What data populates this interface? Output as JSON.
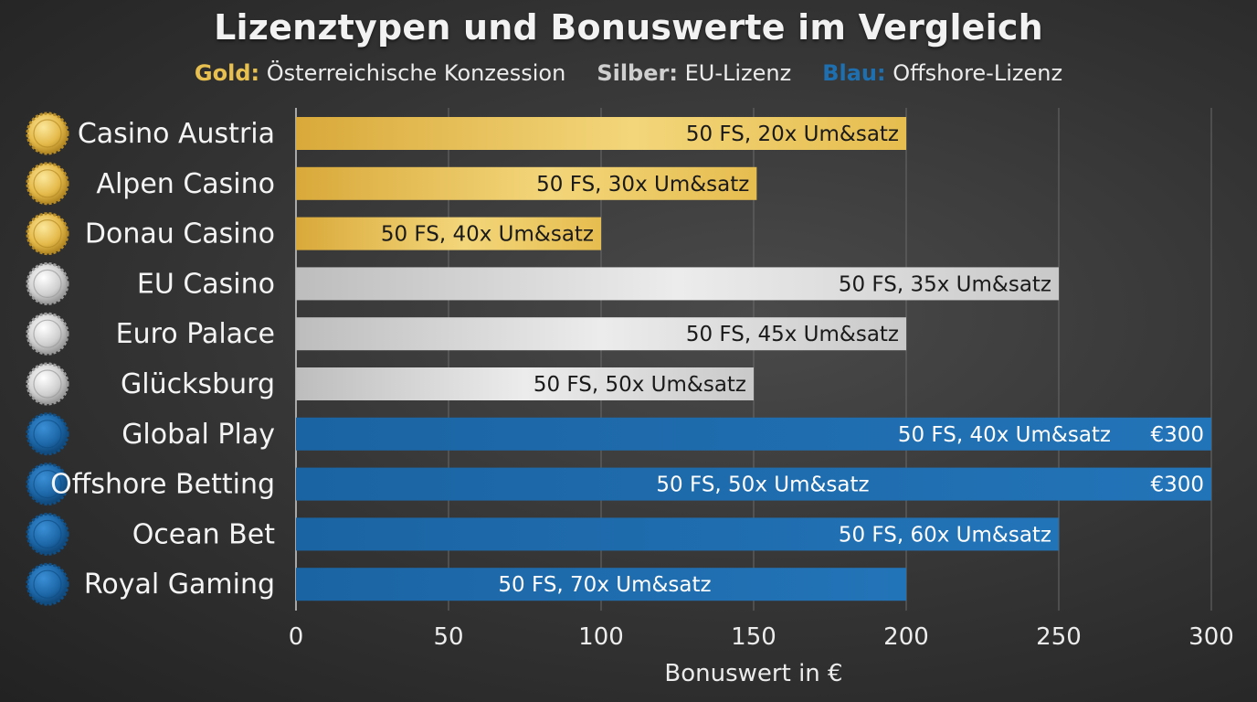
{
  "chart_data": {
    "type": "bar",
    "orientation": "horizontal",
    "title": "Lizenztypen und Bonuswerte im Vergleich",
    "legend": [
      {
        "key": "Gold:",
        "text": "Österreichische Konzession",
        "color": "#e8c050"
      },
      {
        "key": "Silber:",
        "text": "EU-Lizenz",
        "color": "#cfcfcf"
      },
      {
        "key": "Blau:",
        "text": "Offshore-Lizenz",
        "color": "#1e6fb0"
      }
    ],
    "legend_placement": "top-center",
    "categories": [
      "Casino Austria",
      "Alpen Casino",
      "Donau Casino",
      "EU Casino",
      "Euro Palace",
      "Glücksburg",
      "Global Play",
      "Offshore Betting",
      "Ocean Bet",
      "Royal Gaming"
    ],
    "values": [
      200,
      151,
      100,
      250,
      200,
      150,
      300,
      300,
      250,
      200
    ],
    "license": [
      "gold",
      "gold",
      "gold",
      "silver",
      "silver",
      "silver",
      "blue",
      "blue",
      "blue",
      "blue"
    ],
    "bar_labels": [
      "50 FS, 20x Um&satz",
      "50 FS, 30x Um&satz",
      "50 FS, 40x Um&satz",
      "50 FS, 35x Um&satz",
      "50 FS, 45x Um&satz",
      "50 FS, 50x Um&satz",
      "50 FS, 40x Um&satz",
      "50 FS, 50x Um&satz",
      "50 FS, 60x Um&satz",
      "50 FS, 70x Um&satz"
    ],
    "value_labels": [
      "",
      "",
      "",
      "",
      "",
      "",
      "€300",
      "€300",
      "",
      ""
    ],
    "xlabel": "Bonuswert in €",
    "ylabel": "",
    "xlim": [
      0,
      300
    ],
    "xticks": [
      0,
      50,
      100,
      150,
      200,
      250,
      300
    ],
    "grid": true,
    "colors": {
      "gold": "#e8c050",
      "silver": "#d2d2d2",
      "blue": "#1e6fb0"
    }
  }
}
